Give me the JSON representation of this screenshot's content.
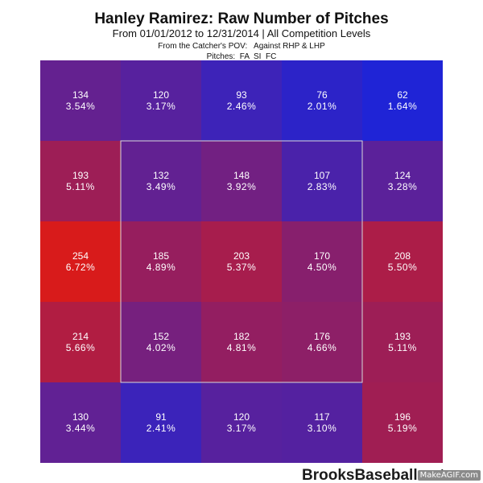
{
  "chart_data": {
    "type": "heatmap",
    "title": "Hanley Ramirez: Raw Number of Pitches",
    "subtitle": "From 01/01/2012 to 12/31/2014 | All Competition Levels",
    "notes": [
      "From the Catcher's POV:   Against RHP & LHP",
      "Pitches:  FA  SI  FC"
    ],
    "rows": 5,
    "cols": 5,
    "strike_zone": {
      "rows": [
        1,
        3
      ],
      "cols": [
        1,
        3
      ]
    },
    "color_scale": {
      "low": "#1f24d6",
      "high": "#d81b1b"
    },
    "values": [
      [
        134,
        120,
        93,
        76,
        62
      ],
      [
        193,
        132,
        148,
        107,
        124
      ],
      [
        254,
        185,
        203,
        170,
        208
      ],
      [
        214,
        152,
        182,
        176,
        193
      ],
      [
        130,
        91,
        120,
        117,
        196
      ]
    ],
    "percent_labels": [
      [
        "3.54%",
        "3.17%",
        "2.46%",
        "2.01%",
        "1.64%"
      ],
      [
        "5.11%",
        "3.49%",
        "3.92%",
        "2.83%",
        "3.28%"
      ],
      [
        "6.72%",
        "4.89%",
        "5.37%",
        "4.50%",
        "5.50%"
      ],
      [
        "5.66%",
        "4.02%",
        "4.81%",
        "4.66%",
        "5.11%"
      ],
      [
        "3.44%",
        "2.41%",
        "3.17%",
        "3.10%",
        "5.19%"
      ]
    ]
  },
  "watermark": "BrooksBaseball.net",
  "badge": "MakeAGIF.com"
}
